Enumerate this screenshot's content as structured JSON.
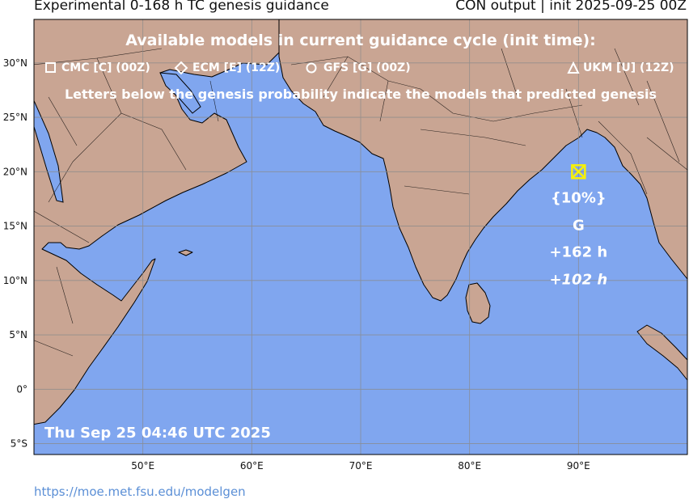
{
  "header": {
    "title_left": "Experimental 0-168 h TC genesis guidance",
    "title_right": "CON output | init 2025-09-25 00Z"
  },
  "map": {
    "extent": {
      "lon": [
        40,
        100
      ],
      "lat": [
        -6,
        34
      ]
    },
    "colors": {
      "ocean": "#80a6ef",
      "land": "#c9a593",
      "grid": "#8a8a8a",
      "marker": "#f5f00a",
      "text": "#ffffff"
    },
    "lon_ticks": [
      {
        "value": 50,
        "label": "50°E"
      },
      {
        "value": 60,
        "label": "60°E"
      },
      {
        "value": 70,
        "label": "70°E"
      },
      {
        "value": 80,
        "label": "80°E"
      },
      {
        "value": 90,
        "label": "90°E"
      }
    ],
    "lat_ticks": [
      {
        "value": 30,
        "label": "30°N"
      },
      {
        "value": 25,
        "label": "25°N"
      },
      {
        "value": 20,
        "label": "20°N"
      },
      {
        "value": 15,
        "label": "15°N"
      },
      {
        "value": 10,
        "label": "10°N"
      },
      {
        "value": 5,
        "label": "5°N"
      },
      {
        "value": 0,
        "label": "0°"
      },
      {
        "value": -5,
        "label": "5°S"
      }
    ]
  },
  "legend": {
    "heading": "Available models in current guidance cycle (init time):",
    "models": [
      {
        "symbol": "square-icon",
        "label": "CMC [C] (00Z)"
      },
      {
        "symbol": "diamond-icon",
        "label": "ECM [E] (12Z)"
      },
      {
        "symbol": "circle-icon",
        "label": "GFS [G] (00Z)"
      },
      {
        "symbol": "triangle-icon",
        "label": "UKM [U] (12Z)"
      }
    ],
    "note": "Letters below the genesis probability indicate the models that predicted genesis"
  },
  "genesis": {
    "lon": 90,
    "lat": 20,
    "probability": "{10%}",
    "models": "G",
    "lead_time": "+162 h",
    "lead_time_italic": "+102 h"
  },
  "timestamp": "Thu Sep 25 04:46 UTC 2025",
  "footer": {
    "url": "https://moe.met.fsu.edu/modelgen"
  }
}
